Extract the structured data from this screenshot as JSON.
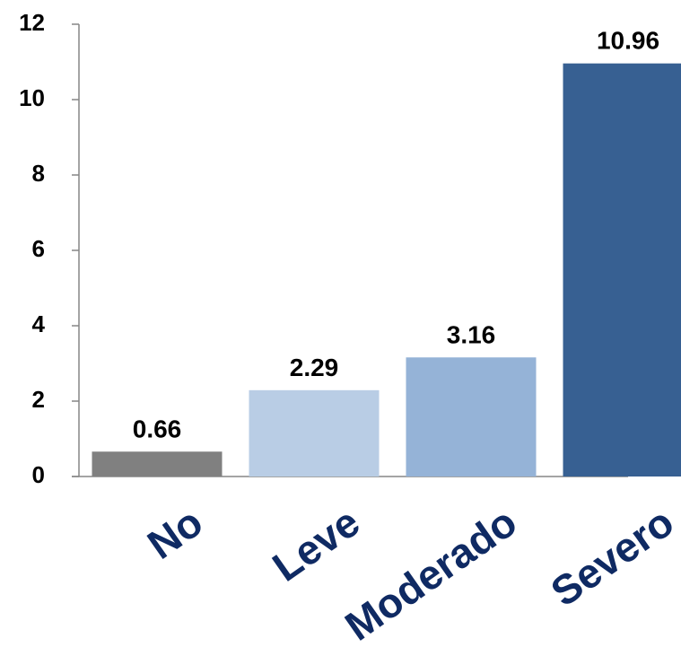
{
  "chart_data": {
    "type": "bar",
    "title": "",
    "xlabel": "",
    "ylabel": "",
    "categories": [
      "No",
      "Leve",
      "Moderado",
      "Severo"
    ],
    "values": [
      0.66,
      2.29,
      3.16,
      10.96
    ],
    "data_labels": [
      "0.66",
      "2.29",
      "3.16",
      "10.96"
    ],
    "bar_colors": [
      "#808080",
      "#b9cde5",
      "#95b3d7",
      "#376092"
    ],
    "category_label_color": "#0f2a63",
    "ylim": [
      0,
      12
    ],
    "yticks": [
      0,
      2,
      4,
      6,
      8,
      10,
      12
    ],
    "grid": false,
    "legend": "none"
  }
}
